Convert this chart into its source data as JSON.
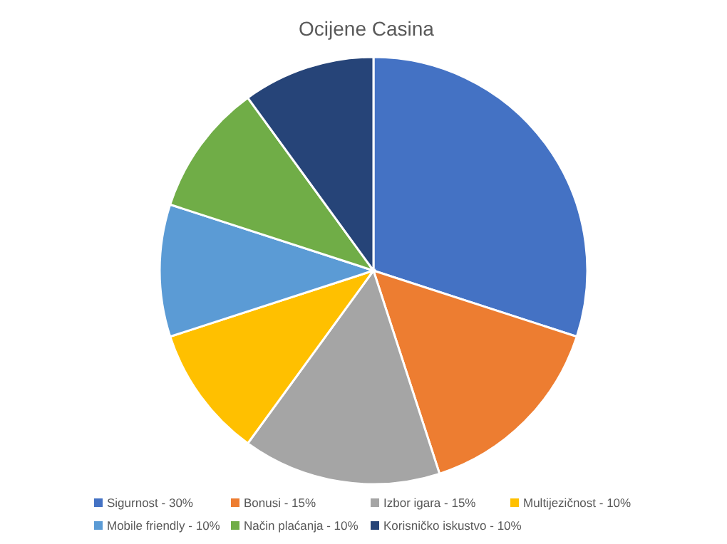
{
  "chart_data": {
    "type": "pie",
    "title": "Ocijene Casina",
    "categories": [
      "Sigurnost - 30%",
      "Bonusi - 15%",
      "Izbor igara - 15%",
      "Multijezičnost - 10%",
      "Mobile friendly - 10%",
      "Način plaćanja - 10%",
      "Korisničko iskustvo - 10%"
    ],
    "values": [
      30,
      15,
      15,
      10,
      10,
      10,
      10
    ],
    "colors": [
      "#4472c4",
      "#ed7d31",
      "#a5a5a5",
      "#ffc000",
      "#5b9bd5",
      "#70ad47",
      "#264478"
    ],
    "legend": "bottom"
  }
}
